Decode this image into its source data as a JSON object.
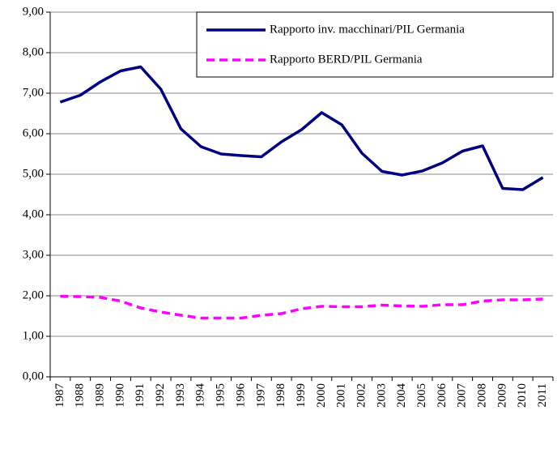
{
  "chart_data": {
    "type": "line",
    "categories": [
      "1987",
      "1988",
      "1989",
      "1990",
      "1991",
      "1992",
      "1993",
      "1994",
      "1995",
      "1996",
      "1997",
      "1998",
      "1999",
      "2000",
      "2001",
      "2002",
      "2003",
      "2004",
      "2005",
      "2006",
      "2007",
      "2008",
      "2009",
      "2010",
      "2011"
    ],
    "series": [
      {
        "name": "Rapporto inv. macchinari/PIL Germania",
        "color": "#000080",
        "line_style": "solid",
        "values": [
          6.78,
          6.95,
          7.28,
          7.55,
          7.65,
          7.1,
          6.12,
          5.68,
          5.5,
          5.46,
          5.43,
          5.8,
          6.1,
          6.52,
          6.22,
          5.52,
          5.07,
          4.98,
          5.08,
          5.28,
          5.57,
          5.7,
          4.65,
          4.62,
          4.92
        ]
      },
      {
        "name": "Rapporto BERD/PIL Germania",
        "color": "#ff00ff",
        "line_style": "dashed",
        "values": [
          1.99,
          1.98,
          1.96,
          1.87,
          1.7,
          1.6,
          1.52,
          1.45,
          1.45,
          1.45,
          1.52,
          1.56,
          1.68,
          1.74,
          1.73,
          1.73,
          1.77,
          1.75,
          1.74,
          1.78,
          1.78,
          1.87,
          1.9,
          1.9,
          1.92
        ]
      }
    ],
    "ylim": [
      0,
      9
    ],
    "yticks": [
      {
        "value": 0,
        "label": "0,00"
      },
      {
        "value": 1,
        "label": "1,00"
      },
      {
        "value": 2,
        "label": "2,00"
      },
      {
        "value": 3,
        "label": "3,00"
      },
      {
        "value": 4,
        "label": "4,00"
      },
      {
        "value": 5,
        "label": "5,00"
      },
      {
        "value": 6,
        "label": "6,00"
      },
      {
        "value": 7,
        "label": "7,00"
      },
      {
        "value": 8,
        "label": "8,00"
      },
      {
        "value": 9,
        "label": "9,00"
      }
    ],
    "grid": true,
    "legend": "upper right"
  }
}
